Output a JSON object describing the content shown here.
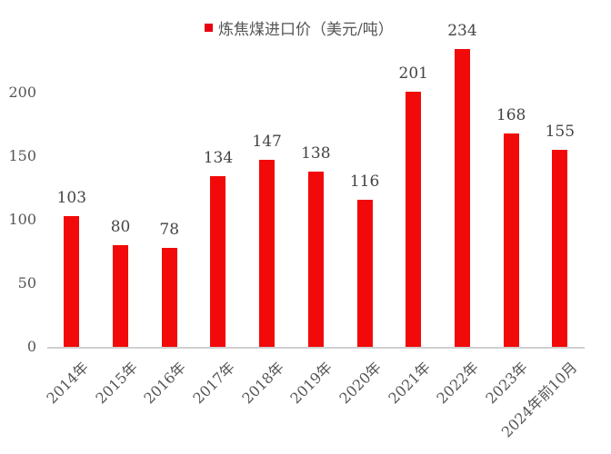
{
  "legend": {
    "label": "炼焦煤进口价（美元/吨）",
    "color": "#e60012"
  },
  "y_ticks": [
    "0",
    "50",
    "100",
    "150",
    "200"
  ],
  "chart_data": {
    "type": "bar",
    "title": "",
    "xlabel": "",
    "ylabel": "",
    "ylim": [
      0,
      250
    ],
    "grid": false,
    "legend_position": "top",
    "categories": [
      "2014年",
      "2015年",
      "2016年",
      "2017年",
      "2018年",
      "2019年",
      "2020年",
      "2021年",
      "2022年",
      "2023年",
      "2024年前10月"
    ],
    "series": [
      {
        "name": "炼焦煤进口价（美元/吨）",
        "values": [
          103,
          80,
          78,
          134,
          147,
          138,
          116,
          201,
          234,
          168,
          155
        ],
        "color": "#f20a0a"
      }
    ]
  }
}
